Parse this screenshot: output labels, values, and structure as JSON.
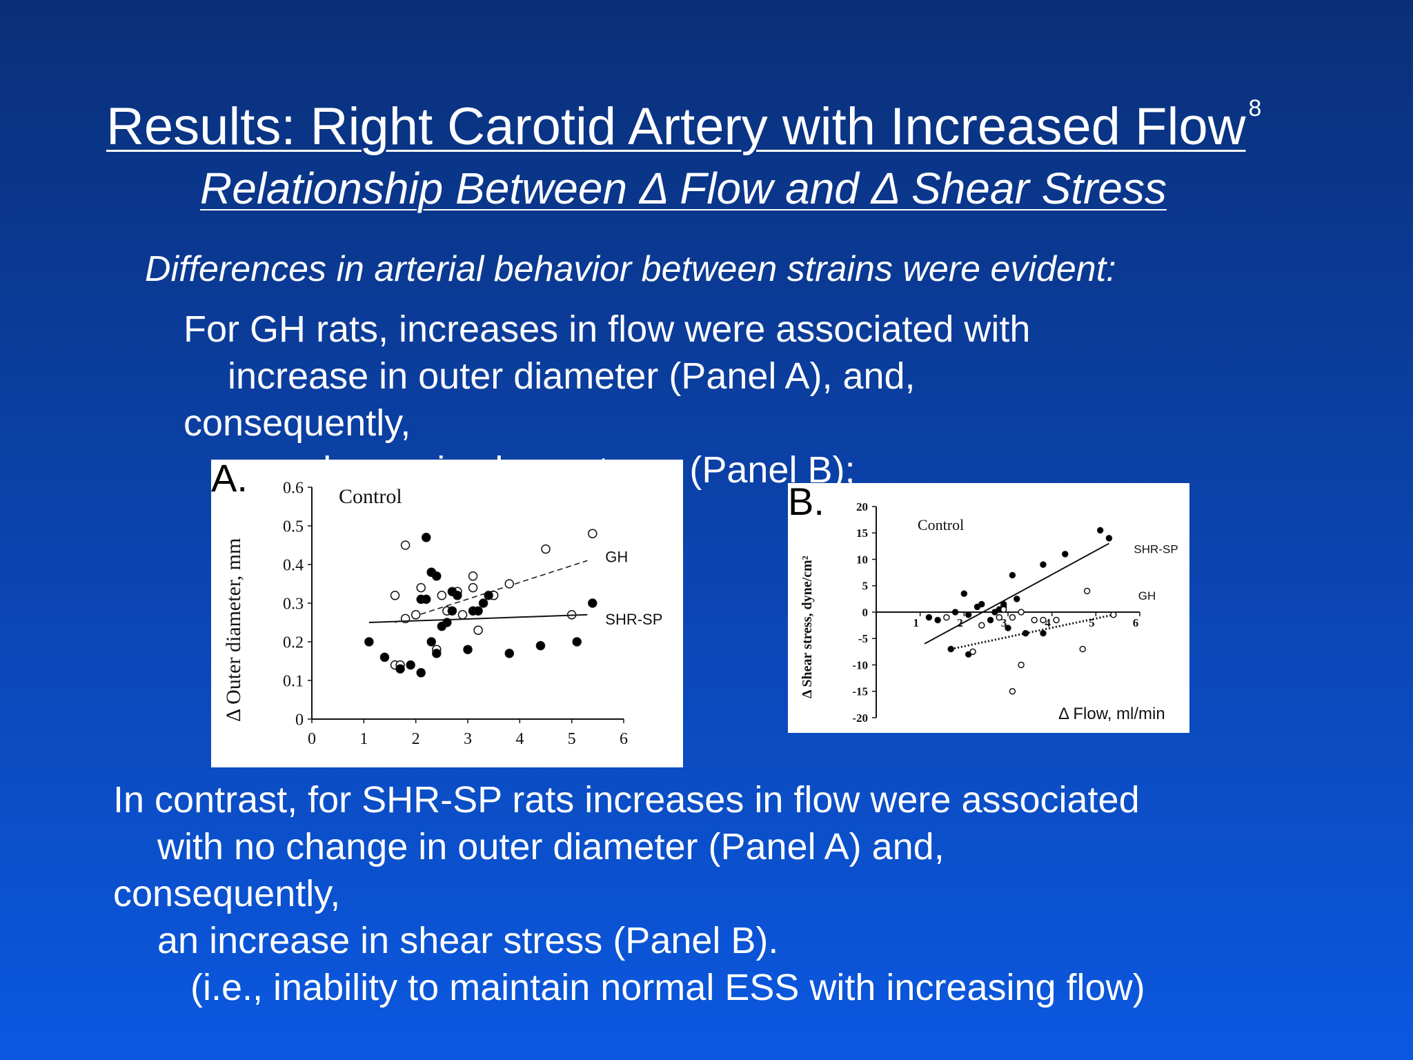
{
  "slide": {
    "title": "Results: Right Carotid Artery with Increased Flow",
    "title_ref": "8",
    "subtitle": "Relationship Between Δ Flow and Δ Shear Stress",
    "intro": "Differences in arterial behavior between strains were evident:",
    "gh_lines": [
      "For GH rats, increases in flow were associated with",
      "increase in outer diameter (Panel A), and,",
      "consequently,",
      "no change in shear stress (Panel B);"
    ],
    "shr_lines": [
      "In contrast, for SHR-SP rats increases in flow were associated",
      "with no change in outer diameter (Panel A) and,",
      "consequently,",
      "an increase in shear stress (Panel B).",
      "(i.e., inability to maintain normal ESS with increasing flow)"
    ]
  },
  "colors": {
    "open_marker": "#ffffff",
    "filled_marker": "#000000",
    "panel_bg": "#ffffff"
  },
  "chart_data": [
    {
      "type": "scatter",
      "panel_label": "A.",
      "title": "Control",
      "xlabel": "",
      "ylabel": "Δ Outer diameter, mm",
      "xlim": [
        0,
        6
      ],
      "ylim": [
        0,
        0.6
      ],
      "xticks": [
        0,
        1,
        2,
        3,
        4,
        5,
        6
      ],
      "yticks": [
        0,
        0.1,
        0.2,
        0.3,
        0.4,
        0.5,
        0.6
      ],
      "series": [
        {
          "name": "GH",
          "marker": "open",
          "line": "dashed",
          "fit": [
            [
              1.6,
              0.25
            ],
            [
              5.3,
              0.41
            ]
          ],
          "points": [
            [
              1.8,
              0.45
            ],
            [
              2.3,
              0.38
            ],
            [
              2.1,
              0.34
            ],
            [
              2.5,
              0.32
            ],
            [
              2.8,
              0.33
            ],
            [
              3.1,
              0.37
            ],
            [
              3.1,
              0.34
            ],
            [
              2.6,
              0.28
            ],
            [
              2.9,
              0.27
            ],
            [
              3.5,
              0.32
            ],
            [
              3.8,
              0.35
            ],
            [
              4.5,
              0.44
            ],
            [
              5.4,
              0.48
            ],
            [
              1.6,
              0.32
            ],
            [
              2.0,
              0.27
            ],
            [
              1.8,
              0.26
            ],
            [
              1.6,
              0.14
            ],
            [
              1.7,
              0.14
            ],
            [
              2.4,
              0.18
            ],
            [
              3.2,
              0.23
            ],
            [
              5.0,
              0.27
            ]
          ]
        },
        {
          "name": "SHR-SP",
          "marker": "filled",
          "line": "solid",
          "fit": [
            [
              1.1,
              0.25
            ],
            [
              5.3,
              0.27
            ]
          ],
          "points": [
            [
              2.2,
              0.47
            ],
            [
              2.3,
              0.38
            ],
            [
              2.4,
              0.37
            ],
            [
              2.1,
              0.31
            ],
            [
              2.2,
              0.31
            ],
            [
              2.7,
              0.33
            ],
            [
              2.8,
              0.32
            ],
            [
              3.4,
              0.32
            ],
            [
              3.3,
              0.3
            ],
            [
              3.1,
              0.28
            ],
            [
              3.2,
              0.28
            ],
            [
              2.7,
              0.28
            ],
            [
              2.6,
              0.25
            ],
            [
              2.5,
              0.24
            ],
            [
              2.3,
              0.2
            ],
            [
              2.4,
              0.17
            ],
            [
              3.0,
              0.18
            ],
            [
              1.1,
              0.2
            ],
            [
              1.4,
              0.16
            ],
            [
              1.7,
              0.13
            ],
            [
              1.9,
              0.14
            ],
            [
              2.1,
              0.12
            ],
            [
              3.8,
              0.17
            ],
            [
              4.4,
              0.19
            ],
            [
              5.1,
              0.2
            ],
            [
              5.4,
              0.3
            ]
          ]
        }
      ]
    },
    {
      "type": "scatter",
      "panel_label": "B.",
      "title": "Control",
      "xlabel": "Δ Flow, ml/min",
      "ylabel": "Δ Shear stress, dyne/cm²",
      "xlim": [
        0,
        6
      ],
      "ylim": [
        -20,
        20
      ],
      "xticks": [
        1,
        2,
        3,
        4,
        5,
        6
      ],
      "yticks": [
        20,
        15,
        10,
        5,
        0,
        -5,
        -10,
        -15,
        -20
      ],
      "series": [
        {
          "name": "SHR-SP",
          "marker": "filled",
          "line": "solid",
          "fit": [
            [
              1.1,
              -6
            ],
            [
              5.3,
              13
            ]
          ],
          "points": [
            [
              5.1,
              15.5
            ],
            [
              5.3,
              14
            ],
            [
              4.3,
              11
            ],
            [
              3.8,
              9
            ],
            [
              3.1,
              7
            ],
            [
              2.0,
              3.5
            ],
            [
              2.3,
              1
            ],
            [
              2.4,
              1.5
            ],
            [
              3.2,
              2.5
            ],
            [
              2.9,
              1.5
            ],
            [
              2.6,
              -1.5
            ],
            [
              3.0,
              -3
            ],
            [
              3.4,
              -4
            ],
            [
              1.2,
              -1
            ],
            [
              1.4,
              -1.5
            ],
            [
              1.8,
              0
            ],
            [
              2.1,
              -0.5
            ],
            [
              2.7,
              0
            ],
            [
              2.8,
              0.5
            ],
            [
              2.9,
              1
            ],
            [
              3.8,
              -4
            ],
            [
              1.7,
              -7
            ],
            [
              2.1,
              -8
            ]
          ]
        },
        {
          "name": "GH",
          "marker": "open",
          "line": "dotted",
          "fit": [
            [
              1.7,
              -7
            ],
            [
              5.4,
              -0.5
            ]
          ],
          "points": [
            [
              4.8,
              4
            ],
            [
              3.3,
              0
            ],
            [
              2.8,
              -1
            ],
            [
              3.6,
              -1.5
            ],
            [
              3.8,
              -1.5
            ],
            [
              4.1,
              -1.5
            ],
            [
              2.4,
              -2.5
            ],
            [
              2.2,
              -7.5
            ],
            [
              3.3,
              -10
            ],
            [
              3.1,
              -15
            ],
            [
              4.7,
              -7
            ],
            [
              5.4,
              -0.5
            ],
            [
              2.9,
              0.5
            ],
            [
              3.1,
              -1
            ],
            [
              1.6,
              -1
            ]
          ]
        }
      ]
    }
  ]
}
